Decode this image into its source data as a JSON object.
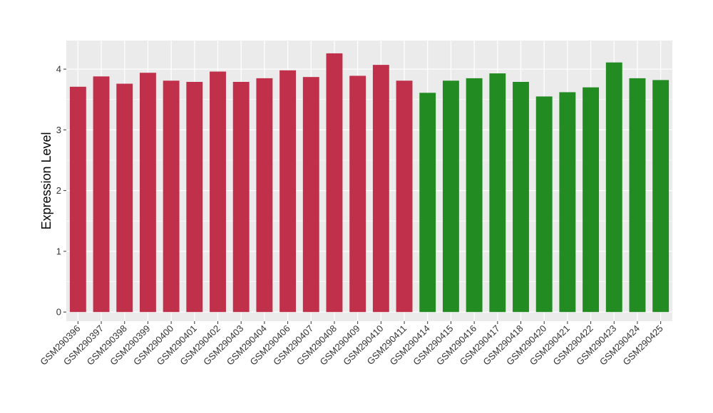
{
  "chart_data": {
    "type": "bar",
    "ylabel": "Expression Level",
    "ylim": [
      -0.15,
      4.47
    ],
    "yticks": [
      0,
      1,
      2,
      3,
      4
    ],
    "grid": true,
    "categories": [
      "GSM290396",
      "GSM290397",
      "GSM290398",
      "GSM290399",
      "GSM290400",
      "GSM290401",
      "GSM290402",
      "GSM290403",
      "GSM290404",
      "GSM290406",
      "GSM290407",
      "GSM290408",
      "GSM290409",
      "GSM290410",
      "GSM290411",
      "GSM290414",
      "GSM290415",
      "GSM290416",
      "GSM290417",
      "GSM290418",
      "GSM290420",
      "GSM290421",
      "GSM290422",
      "GSM290423",
      "GSM290424",
      "GSM290425"
    ],
    "values": [
      3.71,
      3.88,
      3.76,
      3.94,
      3.81,
      3.79,
      3.96,
      3.79,
      3.85,
      3.98,
      3.87,
      4.26,
      3.89,
      4.07,
      3.81,
      3.61,
      3.81,
      3.85,
      3.93,
      3.79,
      3.55,
      3.62,
      3.7,
      4.11,
      3.85,
      3.82
    ],
    "groups": [
      0,
      0,
      0,
      0,
      0,
      0,
      0,
      0,
      0,
      0,
      0,
      0,
      0,
      0,
      0,
      1,
      1,
      1,
      1,
      1,
      1,
      1,
      1,
      1,
      1,
      1
    ],
    "group_colors": [
      "#c0304a",
      "#228b22"
    ],
    "panel_background": "#ebebeb",
    "grid_color": "#ffffff"
  }
}
